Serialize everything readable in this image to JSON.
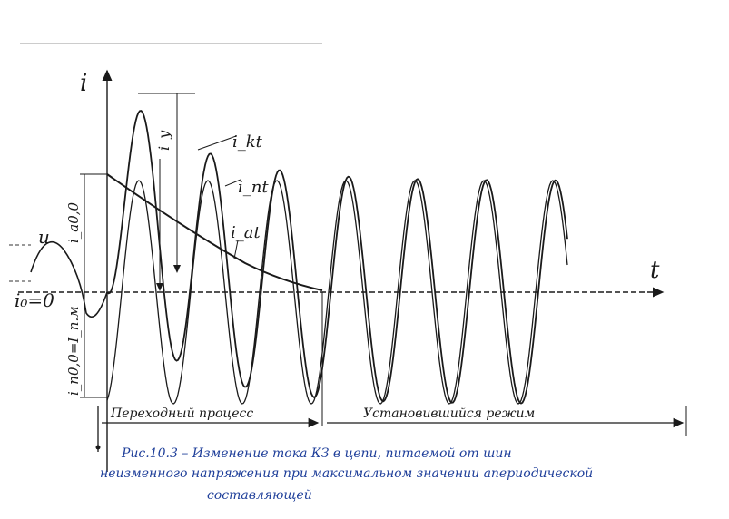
{
  "labels": {
    "axis_i": "i",
    "axis_t": "t",
    "voltage": "u",
    "i_kt": "i_kt",
    "i_nt": "i_nt",
    "i_at": "i_at",
    "i0_zero": "i₀=0",
    "i_a00": "i_a0,0",
    "i_n00": "i_n0,0=I_n.м",
    "i_y": "i_y",
    "transient": "Переходный процесс",
    "steady": "Установившийся режим"
  },
  "caption": {
    "line1": "Рис.10.3 –  Изменение  тока  КЗ  в  цепи,  питаемой  от  шин",
    "line2": "неизменного  напряжения  при  максимальном  значении  апериодической",
    "line3": "составляющей"
  },
  "colors": {
    "ink": "#1a1a1a",
    "caption": "#1f3f9a"
  }
}
